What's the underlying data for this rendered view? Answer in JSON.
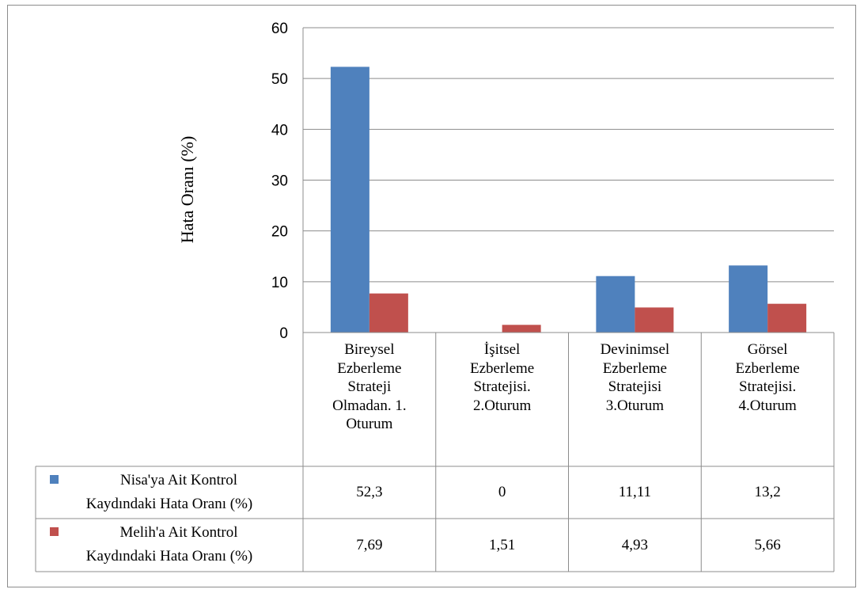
{
  "chart_data": {
    "type": "bar",
    "ylabel": "Hata Oranı (%)",
    "ylim": [
      0,
      60
    ],
    "yticks": [
      "0",
      "10",
      "20",
      "30",
      "40",
      "50",
      "60"
    ],
    "grid": true,
    "categories": [
      "Bireysel\nEzberleme\nStrateji\nOlmadan. 1.\nOturum",
      "İşitsel\nEzberleme\nStratejisi.\n2.Oturum",
      "Devinimsel\nEzberleme\nStratejisi\n3.Oturum",
      "Görsel\nEzberleme\nStratejisi.\n4.Oturum"
    ],
    "series": [
      {
        "name": "Nisa'ya Ait Kontrol Kaydındaki Hata Oranı (%)",
        "values": [
          52.3,
          0,
          11.11,
          13.2
        ],
        "labels": [
          "52,3",
          "0",
          "11,11",
          "13,2"
        ],
        "color": "#4f81bd"
      },
      {
        "name": "Melih'a Ait Kontrol Kaydındaki Hata Oranı (%)",
        "values": [
          7.69,
          1.51,
          4.93,
          5.66
        ],
        "labels": [
          "7,69",
          "1,51",
          "4,93",
          "5,66"
        ],
        "color": "#c0504d"
      }
    ],
    "legend": "data-table-left"
  },
  "legend_lines": [
    [
      "Nisa'ya Ait Kontrol",
      "Kaydındaki Hata Oranı (%)"
    ],
    [
      "Melih'a Ait Kontrol",
      "Kaydındaki Hata Oranı (%)"
    ]
  ]
}
